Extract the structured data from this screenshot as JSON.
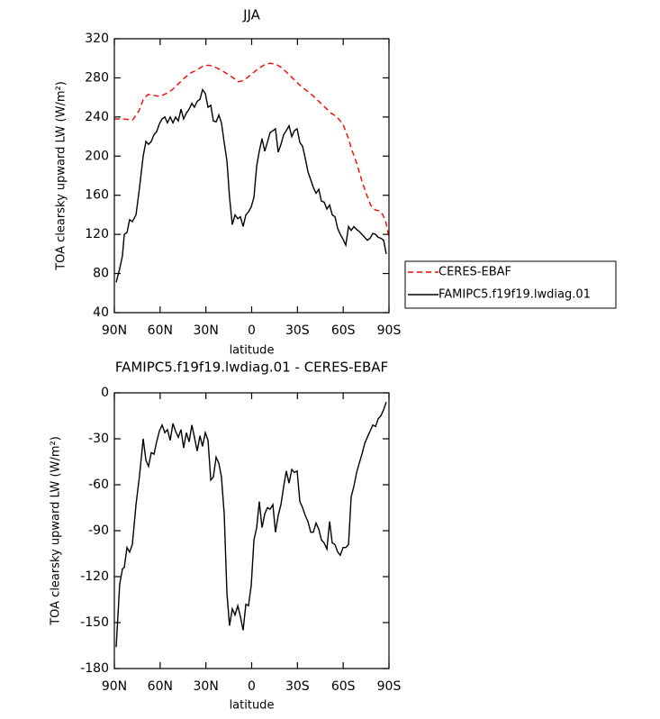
{
  "chart_data": [
    {
      "type": "line",
      "title": "JJA",
      "xlabel": "latitude",
      "ylabel": "TOA clearsky upward LW (W/m²)",
      "xlim": [
        90,
        -90
      ],
      "ylim": [
        40,
        320
      ],
      "xticks": [
        {
          "value": 90,
          "label": "90N"
        },
        {
          "value": 60,
          "label": "60N"
        },
        {
          "value": 30,
          "label": "30N"
        },
        0,
        {
          "value": -30,
          "label": "30S"
        },
        {
          "value": -60,
          "label": "60S"
        },
        {
          "value": -90,
          "label": "90S"
        }
      ],
      "yticks": [
        40,
        80,
        120,
        160,
        200,
        240,
        280,
        320
      ],
      "legend": "right",
      "series": [
        {
          "name": "CERES-EBAF",
          "color": "#ff0000",
          "dash": true,
          "x": [
            90,
            84,
            78,
            74,
            71,
            68,
            64,
            60,
            56,
            52,
            48,
            44,
            40,
            36,
            32,
            28,
            24,
            20,
            16,
            12,
            9,
            6,
            3,
            0,
            -4,
            -8,
            -12,
            -16,
            -20,
            -24,
            -28,
            -32,
            -36,
            -40,
            -44,
            -48,
            -52,
            -56,
            -60,
            -63,
            -66,
            -69,
            -72,
            -75,
            -78,
            -81,
            -84,
            -86,
            -88,
            -90
          ],
          "values": [
            238,
            238,
            237,
            246,
            258,
            263,
            262,
            261,
            264,
            268,
            274,
            280,
            285,
            288,
            292,
            293,
            291,
            288,
            284,
            280,
            276,
            277,
            280,
            284,
            289,
            293,
            295,
            294,
            290,
            284,
            278,
            272,
            267,
            262,
            256,
            250,
            244,
            240,
            232,
            220,
            205,
            192,
            176,
            162,
            150,
            145,
            144,
            140,
            132,
            117
          ]
        },
        {
          "name": "FAMIPC5.f19f19.lwdiag.01",
          "color": "#000000",
          "dash": false,
          "x": [
            88.8,
            86.5,
            84.7,
            83.5,
            81.7,
            80.0,
            78.2,
            75.8,
            73.5,
            71.1,
            69.3,
            67.6,
            65.8,
            64.0,
            62.3,
            60.5,
            58.7,
            56.9,
            55.2,
            53.4,
            51.6,
            49.9,
            48.1,
            46.3,
            44.6,
            42.8,
            41.0,
            39.2,
            37.5,
            35.7,
            33.9,
            32.2,
            30.4,
            28.6,
            26.8,
            25.1,
            23.3,
            21.5,
            19.8,
            18.0,
            16.2,
            14.5,
            12.7,
            10.9,
            9.1,
            7.4,
            5.6,
            3.8,
            2.1,
            0.3,
            -1.5,
            -3.3,
            -5.0,
            -6.8,
            -8.6,
            -10.3,
            -12.1,
            -13.9,
            -15.6,
            -17.4,
            -19.2,
            -21.0,
            -22.7,
            -24.5,
            -26.3,
            -28.0,
            -29.8,
            -31.6,
            -33.4,
            -35.1,
            -36.9,
            -38.7,
            -40.4,
            -42.2,
            -44.0,
            -45.7,
            -47.5,
            -49.3,
            -51.1,
            -52.8,
            -54.6,
            -56.4,
            -58.1,
            -59.9,
            -61.7,
            -63.5,
            -65.2,
            -67.0,
            -68.8,
            -70.5,
            -72.3,
            -74.1,
            -75.8,
            -77.6,
            -79.4,
            -81.2,
            -82.9,
            -84.7,
            -86.5,
            -88.2
          ],
          "values": [
            71,
            85,
            98,
            120,
            122,
            135,
            133,
            140,
            168,
            200,
            215,
            212,
            215,
            222,
            225,
            233,
            238,
            240,
            234,
            240,
            234,
            240,
            236,
            248,
            238,
            244,
            248,
            254,
            250,
            256,
            258,
            268,
            264,
            250,
            252,
            236,
            235,
            242,
            234,
            214,
            195,
            158,
            130,
            140,
            136,
            138,
            128,
            140,
            143,
            148,
            158,
            190,
            205,
            218,
            205,
            214,
            224,
            226,
            228,
            204,
            212,
            222,
            226,
            231,
            220,
            226,
            228,
            214,
            210,
            198,
            184,
            176,
            168,
            162,
            166,
            154,
            153,
            146,
            150,
            140,
            138,
            126,
            120,
            115,
            109,
            128,
            124,
            128,
            125,
            123,
            120,
            117,
            114,
            116,
            121,
            120,
            117,
            116,
            114,
            100
          ]
        }
      ]
    },
    {
      "type": "line",
      "title": "FAMIPC5.f19f19.lwdiag.01 - CERES-EBAF",
      "xlabel": "latitude",
      "ylabel": "TOA clearsky upward LW (W/m²)",
      "xlim": [
        90,
        -90
      ],
      "ylim": [
        -180,
        0
      ],
      "xticks": [
        {
          "value": 90,
          "label": "90N"
        },
        {
          "value": 60,
          "label": "60N"
        },
        {
          "value": 30,
          "label": "30N"
        },
        0,
        {
          "value": -30,
          "label": "30S"
        },
        {
          "value": -60,
          "label": "60S"
        },
        {
          "value": -90,
          "label": "90S"
        }
      ],
      "yticks": [
        -180,
        -150,
        -120,
        -90,
        -60,
        -30,
        0
      ],
      "series": [
        {
          "color": "#000000",
          "dash": false,
          "x": [
            88.8,
            86.5,
            84.7,
            83.5,
            81.7,
            80.0,
            78.2,
            75.8,
            73.5,
            71.1,
            69.3,
            67.6,
            65.8,
            64.0,
            62.3,
            60.5,
            58.7,
            56.9,
            55.2,
            53.4,
            51.6,
            49.9,
            48.1,
            46.3,
            44.6,
            42.8,
            41.0,
            39.2,
            37.5,
            35.7,
            33.9,
            32.2,
            30.4,
            28.6,
            26.8,
            25.1,
            23.3,
            21.5,
            19.8,
            18.0,
            16.2,
            14.5,
            12.7,
            10.9,
            9.1,
            7.4,
            5.6,
            3.8,
            2.1,
            0.3,
            -1.5,
            -3.3,
            -5.0,
            -6.8,
            -8.6,
            -10.3,
            -12.1,
            -13.9,
            -15.6,
            -17.4,
            -19.2,
            -21.0,
            -22.7,
            -24.5,
            -26.3,
            -28.0,
            -29.8,
            -31.6,
            -33.4,
            -35.1,
            -36.9,
            -38.7,
            -40.4,
            -42.2,
            -44.0,
            -45.7,
            -47.5,
            -49.3,
            -51.1,
            -52.8,
            -54.6,
            -56.4,
            -58.1,
            -59.9,
            -61.7,
            -63.5,
            -65.2,
            -67.0,
            -68.8,
            -70.5,
            -72.3,
            -74.1,
            -75.8,
            -77.6,
            -79.4,
            -81.2,
            -82.9,
            -84.7,
            -86.5,
            -88.2
          ],
          "values": [
            -166,
            -125,
            -115,
            -114,
            -101,
            -104,
            -99,
            -73,
            -54,
            -30,
            -44,
            -48,
            -39,
            -40,
            -32,
            -25,
            -21,
            -26,
            -24,
            -31,
            -20,
            -25,
            -29,
            -24,
            -36,
            -26,
            -32,
            -21,
            -29,
            -38,
            -28,
            -35,
            -26,
            -31,
            -57,
            -55,
            -42,
            -46,
            -55,
            -79,
            -131,
            -152,
            -141,
            -145,
            -139,
            -146,
            -155,
            -138,
            -139,
            -126,
            -96,
            -88,
            -71,
            -88,
            -79,
            -75,
            -76,
            -73,
            -91,
            -80,
            -73,
            -61,
            -51,
            -59,
            -50,
            -52,
            -51,
            -71,
            -75,
            -80,
            -84,
            -91,
            -91,
            -85,
            -89,
            -96,
            -98,
            -102,
            -84,
            -98,
            -99,
            -104,
            -106,
            -101,
            -101,
            -99,
            -68,
            -61,
            -52,
            -46,
            -40,
            -33,
            -29,
            -25,
            -21,
            -22,
            -17,
            -15,
            -11,
            -6
          ]
        }
      ]
    }
  ]
}
